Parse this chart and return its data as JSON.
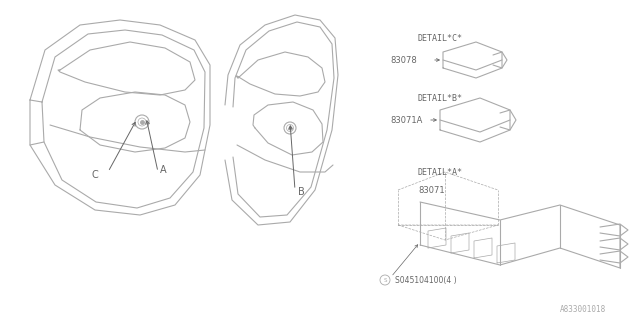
{
  "bg_color": "#ffffff",
  "line_color": "#aaaaaa",
  "text_color": "#666666",
  "dark_color": "#888888",
  "diagram_id": "A833001018",
  "part_label_A": "83071",
  "part_label_B": "83071A",
  "part_label_C": "83078",
  "detail_A": "DETAIL*A*",
  "detail_B": "DETAIL*B*",
  "detail_C": "DETAIL*C*",
  "screw_label": "S045104100(4 )",
  "callout_A": "A",
  "callout_B": "B",
  "callout_C": "C"
}
